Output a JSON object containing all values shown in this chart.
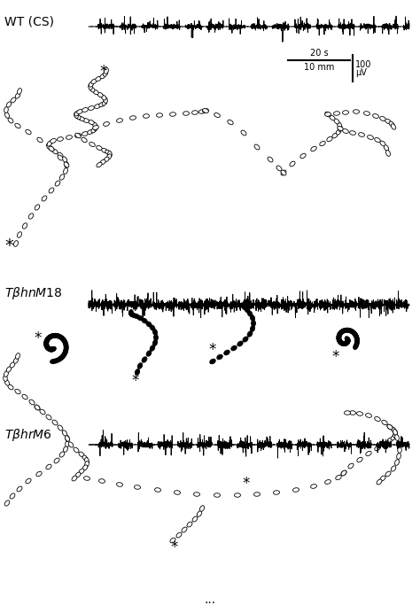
{
  "background_color": "#ffffff",
  "figsize": [
    4.74,
    6.92
  ],
  "dpi": 100,
  "wt_label": "WT (CS)",
  "tbhm18_label": "TβhnM18",
  "tbhrm6_label": "TβhrM6",
  "scale_time": "20 s",
  "scale_dist": "10 mm",
  "scale_amp": "100",
  "scale_amp_unit": "μV",
  "ellipsis": "..."
}
